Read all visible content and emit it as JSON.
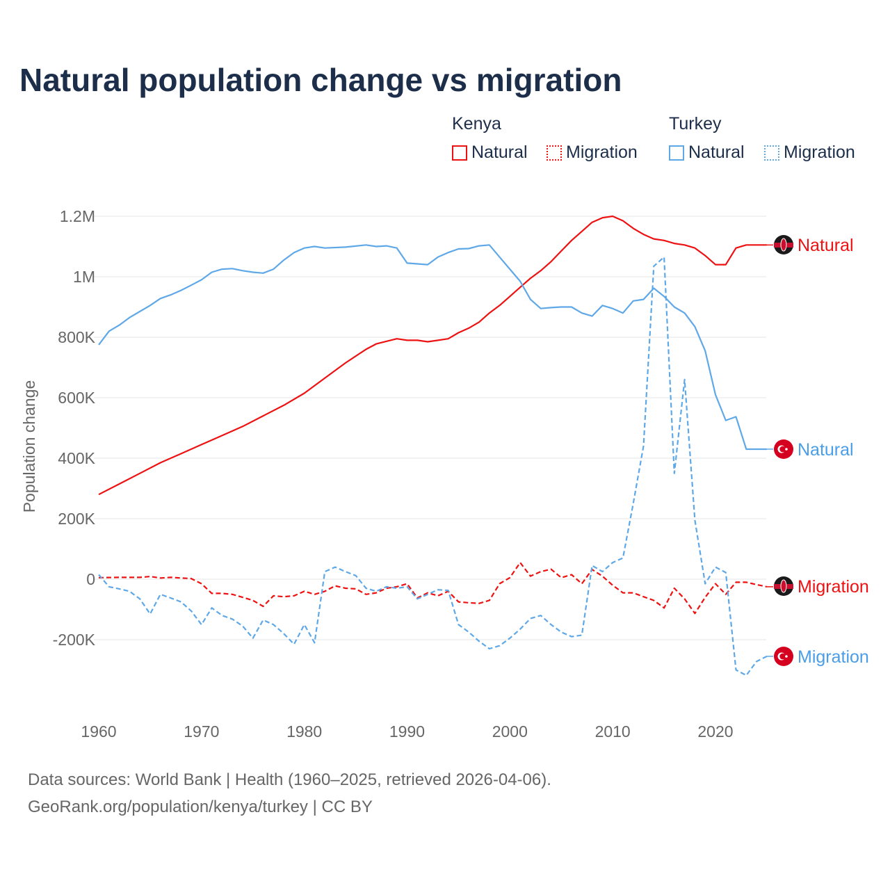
{
  "title": "Natural population change vs migration",
  "legend": {
    "groups": [
      {
        "name": "Kenya",
        "items": [
          {
            "label": "Natural",
            "style": "solid",
            "color": "#ee1111"
          },
          {
            "label": "Migration",
            "style": "dotted",
            "color": "#ee1111"
          }
        ]
      },
      {
        "name": "Turkey",
        "items": [
          {
            "label": "Natural",
            "style": "solid",
            "color": "#5fa8e8"
          },
          {
            "label": "Migration",
            "style": "dotted",
            "color": "#5fa8e8"
          }
        ]
      }
    ]
  },
  "footer": {
    "line1": "Data sources: World Bank | Health (1960–2025, retrieved 2026-04-06).",
    "line2": "GeoRank.org/population/kenya/turkey | CC BY"
  },
  "chart_data": {
    "type": "line",
    "title": "Natural population change vs migration",
    "xlabel": "",
    "ylabel": "Population change",
    "xlim": [
      1960,
      2025
    ],
    "ylim": [
      -350000,
      1250000
    ],
    "xticks": [
      1960,
      1970,
      1980,
      1990,
      2000,
      2010,
      2020
    ],
    "xtick_labels": [
      "1960",
      "1970",
      "1980",
      "1990",
      "2000",
      "2010",
      "2020"
    ],
    "yticks": [
      -200000,
      0,
      200000,
      400000,
      600000,
      800000,
      1000000,
      1200000
    ],
    "ytick_labels": [
      "-200K",
      "0",
      "200K",
      "400K",
      "600K",
      "800K",
      "1M",
      "1.2M"
    ],
    "grid": true,
    "series": [
      {
        "name": "Kenya Natural",
        "end_label": "Natural",
        "color": "#ee1111",
        "dash": false,
        "flag": "kenya-flag-icon",
        "points": [
          [
            1960,
            280000
          ],
          [
            1962,
            315000
          ],
          [
            1964,
            350000
          ],
          [
            1966,
            385000
          ],
          [
            1968,
            415000
          ],
          [
            1970,
            445000
          ],
          [
            1972,
            475000
          ],
          [
            1974,
            505000
          ],
          [
            1976,
            540000
          ],
          [
            1978,
            575000
          ],
          [
            1980,
            615000
          ],
          [
            1982,
            665000
          ],
          [
            1984,
            715000
          ],
          [
            1986,
            760000
          ],
          [
            1987,
            778000
          ],
          [
            1989,
            795000
          ],
          [
            1990,
            790000
          ],
          [
            1991,
            790000
          ],
          [
            1992,
            785000
          ],
          [
            1994,
            795000
          ],
          [
            1995,
            815000
          ],
          [
            1996,
            830000
          ],
          [
            1997,
            850000
          ],
          [
            1998,
            880000
          ],
          [
            1999,
            905000
          ],
          [
            2000,
            935000
          ],
          [
            2001,
            965000
          ],
          [
            2002,
            995000
          ],
          [
            2003,
            1020000
          ],
          [
            2004,
            1050000
          ],
          [
            2005,
            1085000
          ],
          [
            2006,
            1120000
          ],
          [
            2007,
            1150000
          ],
          [
            2008,
            1180000
          ],
          [
            2009,
            1195000
          ],
          [
            2010,
            1200000
          ],
          [
            2011,
            1185000
          ],
          [
            2012,
            1160000
          ],
          [
            2013,
            1140000
          ],
          [
            2014,
            1125000
          ],
          [
            2015,
            1120000
          ],
          [
            2016,
            1110000
          ],
          [
            2017,
            1105000
          ],
          [
            2018,
            1095000
          ],
          [
            2019,
            1070000
          ],
          [
            2020,
            1040000
          ],
          [
            2021,
            1040000
          ],
          [
            2022,
            1095000
          ],
          [
            2023,
            1105000
          ],
          [
            2024,
            1105000
          ],
          [
            2025,
            1105000
          ]
        ]
      },
      {
        "name": "Turkey Natural",
        "end_label": "Natural",
        "color": "#5fa8e8",
        "dash": false,
        "flag": "turkey-flag-icon",
        "points": [
          [
            1960,
            775000
          ],
          [
            1961,
            820000
          ],
          [
            1962,
            840000
          ],
          [
            1963,
            865000
          ],
          [
            1964,
            885000
          ],
          [
            1965,
            905000
          ],
          [
            1966,
            928000
          ],
          [
            1967,
            940000
          ],
          [
            1968,
            955000
          ],
          [
            1969,
            972000
          ],
          [
            1970,
            990000
          ],
          [
            1971,
            1015000
          ],
          [
            1972,
            1025000
          ],
          [
            1973,
            1027000
          ],
          [
            1974,
            1020000
          ],
          [
            1975,
            1015000
          ],
          [
            1976,
            1012000
          ],
          [
            1977,
            1025000
          ],
          [
            1978,
            1055000
          ],
          [
            1979,
            1080000
          ],
          [
            1980,
            1095000
          ],
          [
            1981,
            1100000
          ],
          [
            1982,
            1095000
          ],
          [
            1984,
            1098000
          ],
          [
            1986,
            1105000
          ],
          [
            1987,
            1100000
          ],
          [
            1988,
            1102000
          ],
          [
            1989,
            1095000
          ],
          [
            1990,
            1045000
          ],
          [
            1992,
            1040000
          ],
          [
            1993,
            1065000
          ],
          [
            1994,
            1080000
          ],
          [
            1995,
            1092000
          ],
          [
            1996,
            1093000
          ],
          [
            1997,
            1102000
          ],
          [
            1998,
            1105000
          ],
          [
            1999,
            1065000
          ],
          [
            2000,
            1025000
          ],
          [
            2001,
            985000
          ],
          [
            2002,
            925000
          ],
          [
            2003,
            895000
          ],
          [
            2004,
            898000
          ],
          [
            2005,
            900000
          ],
          [
            2006,
            900000
          ],
          [
            2007,
            880000
          ],
          [
            2008,
            870000
          ],
          [
            2009,
            905000
          ],
          [
            2010,
            895000
          ],
          [
            2011,
            880000
          ],
          [
            2012,
            920000
          ],
          [
            2013,
            925000
          ],
          [
            2014,
            962000
          ],
          [
            2015,
            935000
          ],
          [
            2016,
            900000
          ],
          [
            2017,
            880000
          ],
          [
            2018,
            835000
          ],
          [
            2019,
            755000
          ],
          [
            2020,
            610000
          ],
          [
            2021,
            525000
          ],
          [
            2022,
            537000
          ],
          [
            2023,
            430000
          ],
          [
            2024,
            430000
          ],
          [
            2025,
            430000
          ]
        ]
      },
      {
        "name": "Kenya Migration",
        "end_label": "Migration",
        "color": "#ee1111",
        "dash": true,
        "flag": "kenya-flag-icon",
        "points": [
          [
            1960,
            5000
          ],
          [
            1962,
            6000
          ],
          [
            1964,
            6000
          ],
          [
            1965,
            9000
          ],
          [
            1966,
            4000
          ],
          [
            1967,
            6000
          ],
          [
            1969,
            2000
          ],
          [
            1970,
            -15000
          ],
          [
            1971,
            -47000
          ],
          [
            1972,
            -47000
          ],
          [
            1973,
            -50000
          ],
          [
            1974,
            -60000
          ],
          [
            1975,
            -70000
          ],
          [
            1976,
            -90000
          ],
          [
            1977,
            -55000
          ],
          [
            1978,
            -58000
          ],
          [
            1979,
            -55000
          ],
          [
            1980,
            -40000
          ],
          [
            1981,
            -50000
          ],
          [
            1982,
            -40000
          ],
          [
            1983,
            -22000
          ],
          [
            1984,
            -30000
          ],
          [
            1985,
            -32000
          ],
          [
            1986,
            -50000
          ],
          [
            1987,
            -45000
          ],
          [
            1988,
            -30000
          ],
          [
            1989,
            -25000
          ],
          [
            1990,
            -15000
          ],
          [
            1991,
            -62000
          ],
          [
            1992,
            -45000
          ],
          [
            1993,
            -55000
          ],
          [
            1994,
            -40000
          ],
          [
            1995,
            -75000
          ],
          [
            1996,
            -78000
          ],
          [
            1997,
            -80000
          ],
          [
            1998,
            -70000
          ],
          [
            1999,
            -15000
          ],
          [
            2000,
            5000
          ],
          [
            2001,
            55000
          ],
          [
            2002,
            10000
          ],
          [
            2003,
            25000
          ],
          [
            2004,
            33000
          ],
          [
            2005,
            5000
          ],
          [
            2006,
            15000
          ],
          [
            2007,
            -15000
          ],
          [
            2008,
            32000
          ],
          [
            2009,
            10000
          ],
          [
            2010,
            -20000
          ],
          [
            2011,
            -45000
          ],
          [
            2012,
            -45000
          ],
          [
            2013,
            -58000
          ],
          [
            2014,
            -70000
          ],
          [
            2015,
            -95000
          ],
          [
            2016,
            -30000
          ],
          [
            2017,
            -65000
          ],
          [
            2018,
            -113000
          ],
          [
            2019,
            -60000
          ],
          [
            2020,
            -15000
          ],
          [
            2021,
            -50000
          ],
          [
            2022,
            -10000
          ],
          [
            2023,
            -10000
          ],
          [
            2024,
            -18000
          ],
          [
            2025,
            -25000
          ]
        ]
      },
      {
        "name": "Turkey Migration",
        "end_label": "Migration",
        "color": "#5fa8e8",
        "dash": true,
        "flag": "turkey-flag-icon",
        "points": [
          [
            1960,
            15000
          ],
          [
            1961,
            -25000
          ],
          [
            1962,
            -32000
          ],
          [
            1963,
            -40000
          ],
          [
            1964,
            -65000
          ],
          [
            1965,
            -115000
          ],
          [
            1966,
            -50000
          ],
          [
            1967,
            -62000
          ],
          [
            1968,
            -75000
          ],
          [
            1969,
            -105000
          ],
          [
            1970,
            -150000
          ],
          [
            1971,
            -95000
          ],
          [
            1972,
            -120000
          ],
          [
            1973,
            -132000
          ],
          [
            1974,
            -155000
          ],
          [
            1975,
            -195000
          ],
          [
            1976,
            -135000
          ],
          [
            1977,
            -150000
          ],
          [
            1978,
            -180000
          ],
          [
            1979,
            -215000
          ],
          [
            1980,
            -150000
          ],
          [
            1981,
            -210000
          ],
          [
            1982,
            25000
          ],
          [
            1983,
            40000
          ],
          [
            1984,
            25000
          ],
          [
            1985,
            12000
          ],
          [
            1986,
            -30000
          ],
          [
            1987,
            -40000
          ],
          [
            1988,
            -25000
          ],
          [
            1989,
            -30000
          ],
          [
            1990,
            -25000
          ],
          [
            1991,
            -65000
          ],
          [
            1992,
            -50000
          ],
          [
            1993,
            -35000
          ],
          [
            1994,
            -37000
          ],
          [
            1995,
            -150000
          ],
          [
            1996,
            -175000
          ],
          [
            1997,
            -205000
          ],
          [
            1998,
            -230000
          ],
          [
            1999,
            -220000
          ],
          [
            2000,
            -195000
          ],
          [
            2001,
            -165000
          ],
          [
            2002,
            -130000
          ],
          [
            2003,
            -120000
          ],
          [
            2004,
            -150000
          ],
          [
            2005,
            -175000
          ],
          [
            2006,
            -190000
          ],
          [
            2007,
            -185000
          ],
          [
            2008,
            45000
          ],
          [
            2009,
            25000
          ],
          [
            2010,
            55000
          ],
          [
            2011,
            70000
          ],
          [
            2012,
            250000
          ],
          [
            2013,
            440000
          ],
          [
            2014,
            1035000
          ],
          [
            2015,
            1065000
          ],
          [
            2016,
            350000
          ],
          [
            2017,
            660000
          ],
          [
            2018,
            195000
          ],
          [
            2019,
            -15000
          ],
          [
            2020,
            40000
          ],
          [
            2021,
            22000
          ],
          [
            2022,
            -300000
          ],
          [
            2023,
            -318000
          ],
          [
            2024,
            -272000
          ],
          [
            2025,
            -255000
          ]
        ]
      }
    ]
  }
}
